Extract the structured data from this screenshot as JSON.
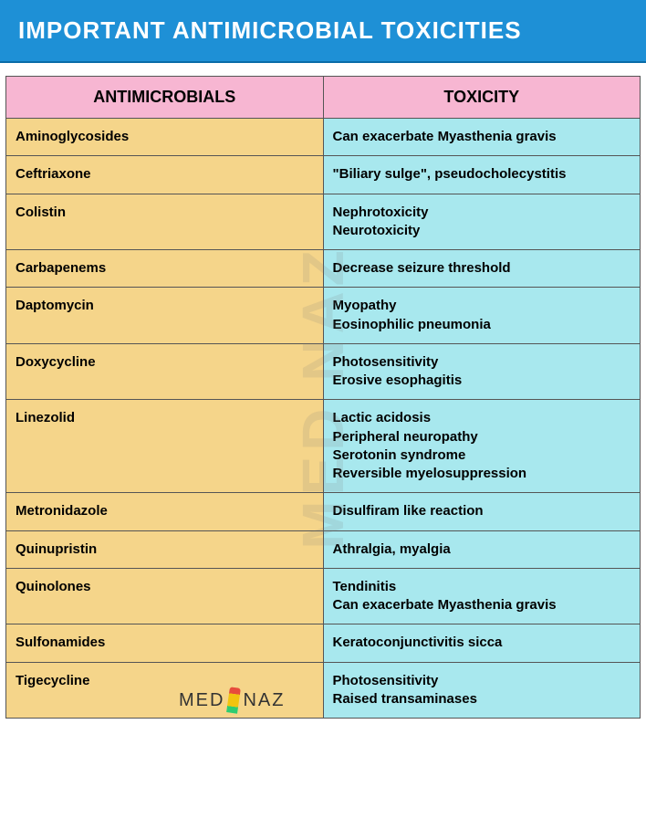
{
  "title": "IMPORTANT ANTIMICROBIAL TOXICITIES",
  "columns": {
    "left": "ANTIMICROBIALS",
    "right": "TOXICITY"
  },
  "colors": {
    "title_bg": "#1e90d6",
    "title_text": "#ffffff",
    "header_bg": "#f7b6d2",
    "left_col_bg": "#f5d58a",
    "right_col_bg": "#a8e8ee",
    "border": "#555555",
    "text": "#000000"
  },
  "typography": {
    "title_fontsize": 26,
    "header_fontsize": 18,
    "cell_fontsize": 15,
    "font_weight": "bold"
  },
  "watermark": "MED  NAZ",
  "brand": {
    "left": "MED",
    "right": "NAZ"
  },
  "rows": [
    {
      "drug": "Aminoglycosides",
      "tox": [
        "Can exacerbate Myasthenia gravis"
      ]
    },
    {
      "drug": "Ceftriaxone",
      "tox": [
        "\"Biliary sulge\", pseudocholecystitis"
      ]
    },
    {
      "drug": "Colistin",
      "tox": [
        "Nephrotoxicity",
        "Neurotoxicity"
      ]
    },
    {
      "drug": "Carbapenems",
      "tox": [
        "Decrease seizure threshold"
      ]
    },
    {
      "drug": "Daptomycin",
      "tox": [
        "Myopathy",
        "Eosinophilic pneumonia"
      ]
    },
    {
      "drug": "Doxycycline",
      "tox": [
        "Photosensitivity",
        "Erosive esophagitis"
      ]
    },
    {
      "drug": "Linezolid",
      "tox": [
        "Lactic acidosis",
        "Peripheral neuropathy",
        "Serotonin syndrome",
        "Reversible myelosuppression"
      ]
    },
    {
      "drug": "Metronidazole",
      "tox": [
        "Disulfiram like reaction"
      ]
    },
    {
      "drug": "Quinupristin",
      "tox": [
        "Athralgia, myalgia"
      ]
    },
    {
      "drug": "Quinolones",
      "tox": [
        "Tendinitis",
        "Can exacerbate Myasthenia gravis"
      ]
    },
    {
      "drug": "Sulfonamides",
      "tox": [
        "Keratoconjunctivitis sicca"
      ]
    },
    {
      "drug": "Tigecycline",
      "tox": [
        "Photosensitivity",
        "Raised transaminases"
      ]
    }
  ]
}
